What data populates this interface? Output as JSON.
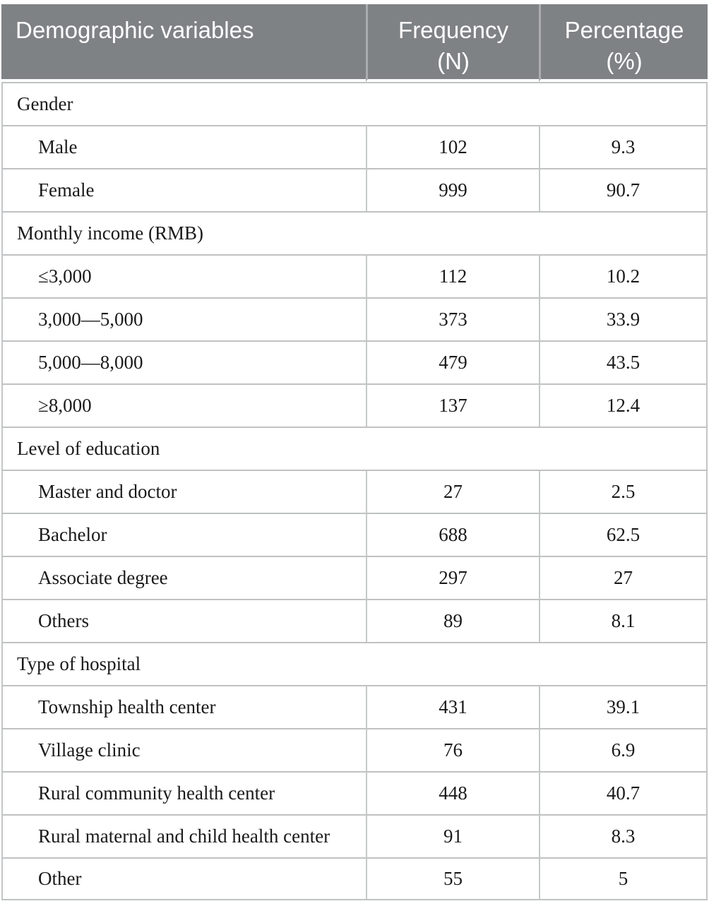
{
  "colors": {
    "header_bg": "#7f8285",
    "header_text": "#ffffff",
    "header_divider": "#aaacad",
    "row_border": "#bfc1c2",
    "body_text": "#1a1a1a",
    "page_bg": "#ffffff"
  },
  "table": {
    "header": {
      "columns": [
        {
          "label": "Demographic variables",
          "unit": ""
        },
        {
          "label": "Frequency",
          "unit": "(N)"
        },
        {
          "label": "Percentage",
          "unit": "(%)"
        }
      ]
    },
    "sections": [
      {
        "category": "Gender",
        "rows": [
          {
            "label": "Male",
            "frequency": "102",
            "percentage": "9.3"
          },
          {
            "label": "Female",
            "frequency": "999",
            "percentage": "90.7"
          }
        ]
      },
      {
        "category": "Monthly income (RMB)",
        "rows": [
          {
            "label": "≤3,000",
            "frequency": "112",
            "percentage": "10.2"
          },
          {
            "label": "3,000—5,000",
            "frequency": "373",
            "percentage": "33.9"
          },
          {
            "label": "5,000—8,000",
            "frequency": "479",
            "percentage": "43.5"
          },
          {
            "label": "≥8,000",
            "frequency": "137",
            "percentage": "12.4"
          }
        ]
      },
      {
        "category": "Level of education",
        "rows": [
          {
            "label": "Master and doctor",
            "frequency": "27",
            "percentage": "2.5"
          },
          {
            "label": "Bachelor",
            "frequency": "688",
            "percentage": "62.5"
          },
          {
            "label": "Associate degree",
            "frequency": "297",
            "percentage": "27"
          },
          {
            "label": "Others",
            "frequency": "89",
            "percentage": "8.1"
          }
        ]
      },
      {
        "category": "Type of hospital",
        "rows": [
          {
            "label": "Township health center",
            "frequency": "431",
            "percentage": "39.1"
          },
          {
            "label": "Village clinic",
            "frequency": "76",
            "percentage": "6.9"
          },
          {
            "label": "Rural community health center",
            "frequency": "448",
            "percentage": "40.7"
          },
          {
            "label": "Rural maternal and child health center",
            "frequency": "91",
            "percentage": "8.3"
          },
          {
            "label": "Other",
            "frequency": "55",
            "percentage": "5"
          }
        ]
      }
    ]
  }
}
